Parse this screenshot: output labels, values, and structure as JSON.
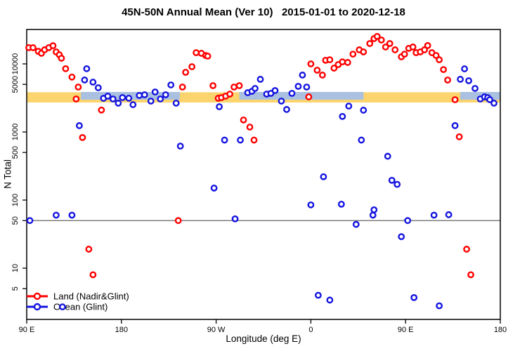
{
  "chart_data": {
    "type": "scatter",
    "title": "45N-50N Annual Mean (Ver 10)   2015-01-01 to 2020-12-18",
    "xlabel": "Longitude (deg E)",
    "ylabel": "N Total",
    "x_axis": {
      "note": "longitude wraps eastward: 90E -> 180 -> 90W -> 0 -> 90E -> 180 (450 deg span)",
      "range_deg_along_axis": [
        0,
        450
      ],
      "tick_positions_deg": [
        0,
        90,
        180,
        270,
        360,
        450
      ],
      "tick_labels": [
        "90 E",
        "180",
        "90 W",
        "0",
        "90 E",
        "180"
      ]
    },
    "y_axis": {
      "scale": "log10",
      "tick_values": [
        10000,
        5000,
        1000,
        500,
        100,
        50,
        10,
        5
      ],
      "tick_labels": [
        "10000",
        "5000",
        "1000",
        "500",
        "100",
        "50",
        "10",
        "5"
      ],
      "approx_range": [
        1.8,
        32000
      ]
    },
    "grid": "off",
    "reference_line": {
      "value": 50,
      "color": "#7f7f7f"
    },
    "bands": {
      "yellow": {
        "color": "#fbd46e",
        "n_top": 3830,
        "n_bottom": 2710,
        "segments_deg": [
          [
            0,
            450
          ]
        ]
      },
      "lightblue": {
        "color": "#a9c0e0",
        "n_top": 3870,
        "n_bottom": 2980,
        "segments_deg": [
          [
            51.5,
            145.5
          ],
          [
            202,
            320
          ],
          [
            412,
            450
          ]
        ]
      }
    },
    "legend": {
      "position": "bottom-left"
    },
    "series": [
      {
        "name": "Land (Nadir&Glint)",
        "color": "#ff0000",
        "points": [
          [
            2,
            17300
          ],
          [
            6,
            17300
          ],
          [
            11,
            15300
          ],
          [
            14,
            14300
          ],
          [
            17,
            16100
          ],
          [
            21,
            17300
          ],
          [
            25,
            18500
          ],
          [
            28,
            15000
          ],
          [
            31,
            13600
          ],
          [
            33,
            12100
          ],
          [
            37,
            8500
          ],
          [
            43,
            6400
          ],
          [
            47,
            3050
          ],
          [
            49,
            4570
          ],
          [
            53,
            830
          ],
          [
            59,
            19
          ],
          [
            63,
            8
          ],
          [
            71,
            2100
          ],
          [
            144,
            50
          ],
          [
            148,
            4570
          ],
          [
            151,
            7520
          ],
          [
            157,
            9100
          ],
          [
            161,
            14600
          ],
          [
            166,
            14300
          ],
          [
            170,
            13300
          ],
          [
            172,
            13000
          ],
          [
            177,
            4790
          ],
          [
            182,
            3130
          ],
          [
            185,
            3200
          ],
          [
            189,
            3360
          ],
          [
            193,
            3600
          ],
          [
            197,
            4570
          ],
          [
            202,
            4790
          ],
          [
            206,
            1500
          ],
          [
            212,
            1180
          ],
          [
            216,
            760
          ],
          [
            268,
            3280
          ],
          [
            270,
            10000
          ],
          [
            276,
            8080
          ],
          [
            281,
            6850
          ],
          [
            284,
            11300
          ],
          [
            288,
            11500
          ],
          [
            292,
            8660
          ],
          [
            296,
            9760
          ],
          [
            300,
            10700
          ],
          [
            305,
            10500
          ],
          [
            310,
            13900
          ],
          [
            316,
            16100
          ],
          [
            320,
            15000
          ],
          [
            326,
            19900
          ],
          [
            330,
            23500
          ],
          [
            333,
            25300
          ],
          [
            337,
            22400
          ],
          [
            341,
            17700
          ],
          [
            345,
            19900
          ],
          [
            350,
            16100
          ],
          [
            356,
            12700
          ],
          [
            359,
            13900
          ],
          [
            363,
            16900
          ],
          [
            367,
            17700
          ],
          [
            370,
            14600
          ],
          [
            374,
            15000
          ],
          [
            378,
            16100
          ],
          [
            381,
            18600
          ],
          [
            385,
            14600
          ],
          [
            389,
            13300
          ],
          [
            392,
            11500
          ],
          [
            396,
            8250
          ],
          [
            400,
            5790
          ],
          [
            407,
            2980
          ],
          [
            411,
            850
          ],
          [
            418,
            19
          ],
          [
            422,
            8
          ]
        ]
      },
      {
        "name": "Ocean (Glint)",
        "color": "#1414e0",
        "points": [
          [
            3,
            50
          ],
          [
            28,
            60
          ],
          [
            34,
            2.7
          ],
          [
            43,
            60
          ],
          [
            50,
            1240
          ],
          [
            55,
            5800
          ],
          [
            57,
            8500
          ],
          [
            63,
            5390
          ],
          [
            68,
            4460
          ],
          [
            73,
            3120
          ],
          [
            77,
            3360
          ],
          [
            82,
            3050
          ],
          [
            87,
            2650
          ],
          [
            91,
            3200
          ],
          [
            97,
            3130
          ],
          [
            101,
            2520
          ],
          [
            107,
            3440
          ],
          [
            112,
            3520
          ],
          [
            118,
            2840
          ],
          [
            122,
            3870
          ],
          [
            127,
            3050
          ],
          [
            132,
            3520
          ],
          [
            137,
            4910
          ],
          [
            142,
            2650
          ],
          [
            146,
            620
          ],
          [
            178,
            150
          ],
          [
            183,
            2350
          ],
          [
            188,
            760
          ],
          [
            198,
            53
          ],
          [
            203,
            760
          ],
          [
            210,
            3780
          ],
          [
            214,
            3960
          ],
          [
            217,
            4360
          ],
          [
            222,
            5940
          ],
          [
            228,
            3600
          ],
          [
            232,
            3690
          ],
          [
            236,
            4060
          ],
          [
            242,
            2840
          ],
          [
            247,
            2140
          ],
          [
            252,
            3690
          ],
          [
            258,
            4680
          ],
          [
            262,
            6850
          ],
          [
            266,
            4570
          ],
          [
            270,
            85
          ],
          [
            277,
            4
          ],
          [
            282,
            220
          ],
          [
            288,
            3.4
          ],
          [
            299,
            87
          ],
          [
            300,
            1690
          ],
          [
            306,
            2400
          ],
          [
            313,
            44
          ],
          [
            318,
            760
          ],
          [
            320,
            2090
          ],
          [
            329,
            60
          ],
          [
            330,
            72
          ],
          [
            343,
            440
          ],
          [
            347,
            195
          ],
          [
            352,
            170
          ],
          [
            356,
            29
          ],
          [
            362,
            50
          ],
          [
            368,
            3.7
          ],
          [
            387,
            60
          ],
          [
            392,
            2.8
          ],
          [
            401,
            61
          ],
          [
            407,
            1240
          ],
          [
            412,
            5940
          ],
          [
            416,
            8460
          ],
          [
            420,
            5660
          ],
          [
            426,
            4360
          ],
          [
            431,
            3050
          ],
          [
            435,
            3280
          ],
          [
            438,
            3200
          ],
          [
            440,
            2980
          ],
          [
            444,
            2650
          ]
        ]
      }
    ]
  }
}
